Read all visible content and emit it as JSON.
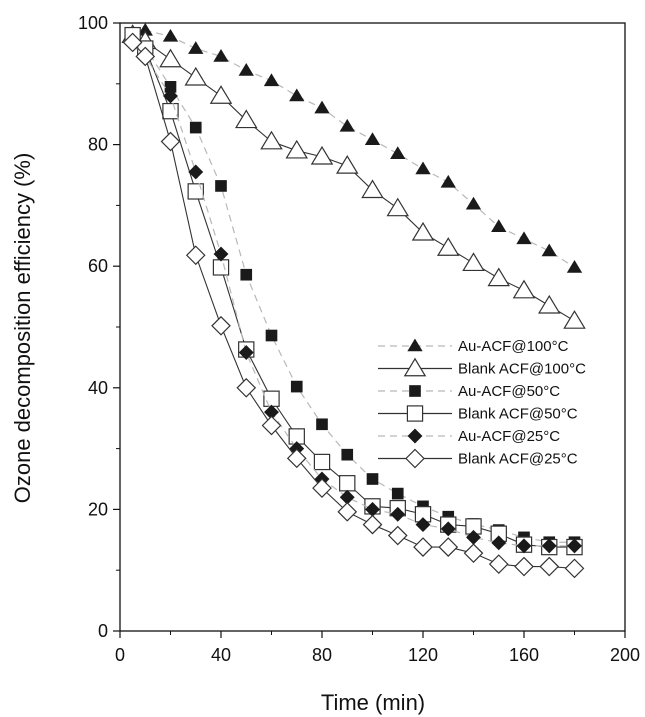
{
  "chart_data": {
    "type": "scatter",
    "title": "",
    "xlabel": "Time (min)",
    "ylabel": "Ozone decomposition efficiency (%)",
    "xlim": [
      0,
      200
    ],
    "ylim": [
      0,
      100
    ],
    "xticks": [
      "0",
      "40",
      "80",
      "120",
      "160",
      "200"
    ],
    "yticks": [
      "0",
      "20",
      "40",
      "60",
      "80",
      "100"
    ],
    "grid": false,
    "legend_position": "center-right",
    "series": [
      {
        "name": "Au-ACF@100°C",
        "marker": "triangle-filled",
        "line": "dashed",
        "color": "#111111",
        "x": [
          5,
          10,
          20,
          30,
          40,
          50,
          60,
          70,
          80,
          90,
          100,
          110,
          120,
          130,
          140,
          150,
          160,
          170,
          180
        ],
        "y": [
          98.5,
          98.8,
          97.8,
          95.8,
          94.5,
          92.2,
          90.5,
          88.0,
          86.0,
          83.0,
          80.8,
          78.5,
          76.0,
          73.8,
          70.2,
          66.5,
          64.5,
          62.5,
          59.8
        ]
      },
      {
        "name": "Blank ACF@100°C",
        "marker": "triangle-open",
        "line": "solid",
        "color": "#111111",
        "x": [
          5,
          10,
          20,
          30,
          40,
          50,
          60,
          70,
          80,
          90,
          100,
          110,
          120,
          130,
          140,
          150,
          160,
          170,
          180
        ],
        "y": [
          98.0,
          97.0,
          94.0,
          91.0,
          88.0,
          84.0,
          80.5,
          79.0,
          78.0,
          76.5,
          72.5,
          69.5,
          65.5,
          63.0,
          60.5,
          58.0,
          56.0,
          53.5,
          51.0
        ]
      },
      {
        "name": "Au-ACF@50°C",
        "marker": "square-filled",
        "line": "dashed",
        "color": "#111111",
        "x": [
          5,
          10,
          20,
          30,
          40,
          50,
          60,
          70,
          80,
          90,
          100,
          110,
          120,
          130,
          140,
          150,
          160,
          170,
          180
        ],
        "y": [
          97.5,
          96.0,
          89.5,
          82.8,
          73.2,
          58.6,
          48.6,
          40.2,
          34.0,
          29.0,
          25.0,
          22.6,
          20.5,
          18.8,
          17.6,
          16.6,
          15.4,
          14.6,
          14.6
        ]
      },
      {
        "name": "Blank ACF@50°C",
        "marker": "square-open",
        "line": "solid",
        "color": "#111111",
        "x": [
          5,
          10,
          20,
          30,
          40,
          50,
          60,
          70,
          80,
          90,
          100,
          110,
          120,
          130,
          140,
          150,
          160,
          170,
          180
        ],
        "y": [
          98.0,
          95.8,
          85.5,
          72.3,
          59.8,
          46.3,
          38.2,
          32.0,
          27.8,
          24.3,
          20.5,
          20.2,
          19.2,
          17.5,
          17.2,
          16.0,
          14.2,
          13.8,
          13.8
        ]
      },
      {
        "name": "Au-ACF@25°C",
        "marker": "diamond-filled",
        "line": "dashed",
        "color": "#111111",
        "x": [
          5,
          10,
          20,
          30,
          40,
          50,
          60,
          70,
          80,
          90,
          100,
          110,
          120,
          130,
          140,
          150,
          160,
          170,
          180
        ],
        "y": [
          96.5,
          94.5,
          88.0,
          75.5,
          62.0,
          45.8,
          36.0,
          30.0,
          25.0,
          22.0,
          20.0,
          19.2,
          17.5,
          16.8,
          15.4,
          14.5,
          14.0,
          14.0,
          14.0
        ]
      },
      {
        "name": "Blank ACF@25°C",
        "marker": "diamond-open",
        "line": "solid",
        "color": "#111111",
        "x": [
          5,
          10,
          20,
          30,
          40,
          50,
          60,
          70,
          80,
          90,
          100,
          110,
          120,
          130,
          140,
          150,
          160,
          170,
          180
        ],
        "y": [
          96.8,
          94.5,
          80.5,
          61.8,
          50.2,
          40.0,
          33.8,
          28.4,
          23.5,
          19.6,
          17.5,
          15.7,
          13.8,
          13.8,
          12.8,
          11.0,
          10.6,
          10.6,
          10.3
        ]
      }
    ]
  }
}
